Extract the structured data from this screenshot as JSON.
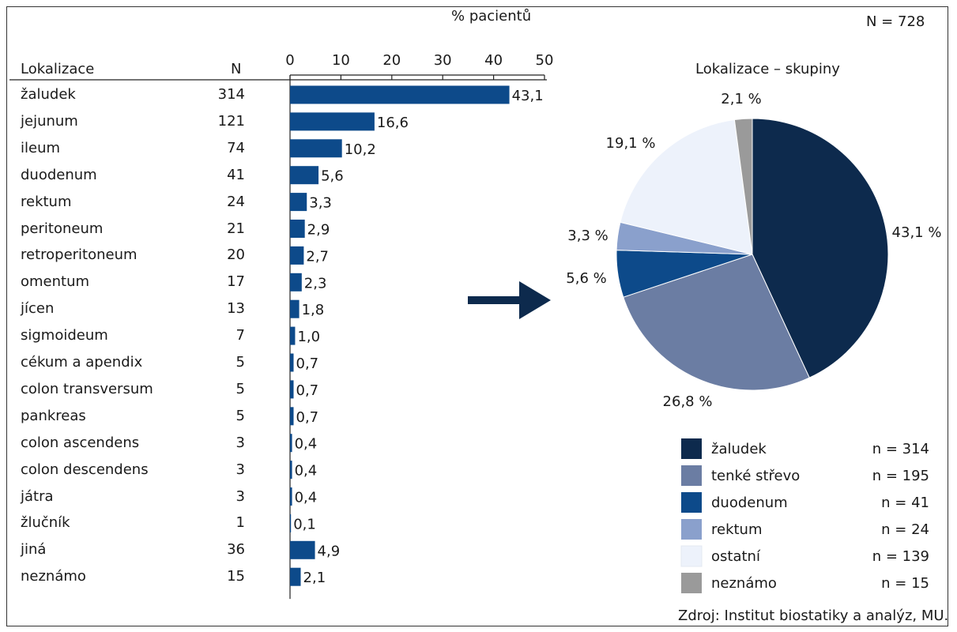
{
  "total_label": "N = 728",
  "source_note": "Zdroj: Institut biostatiky a analýz, MU.",
  "colors": {
    "bar": "#0d4a8a",
    "arrow": "#0d2a4d",
    "zaludek": "#0d2a4d",
    "tenke_strevo": "#6b7da3",
    "duodenum": "#0d4a8a",
    "rektum": "#8aa0cc",
    "ostatni": "#edf2fb",
    "neznamo": "#9a9a9a"
  },
  "chart_data": [
    {
      "type": "bar",
      "orientation": "horizontal",
      "title": "% pacientů",
      "row_header": "Lokalizace",
      "n_header": "N",
      "xlim": [
        0,
        50
      ],
      "xticks": [
        0,
        10,
        20,
        30,
        40,
        50
      ],
      "categories": [
        "žaludek",
        "jejunum",
        "ileum",
        "duodenum",
        "rektum",
        "peritoneum",
        "retroperitoneum",
        "omentum",
        "jícen",
        "sigmoideum",
        "cékum a apendix",
        "colon transversum",
        "pankreas",
        "colon ascendens",
        "colon descendens",
        "játra",
        "žlučník",
        "jiná",
        "neznámo"
      ],
      "n": [
        "314",
        "121",
        "74",
        "41",
        "24",
        "21",
        "20",
        "17",
        "13",
        "7",
        "5",
        "5",
        "5",
        "3",
        "3",
        "3",
        "1",
        "36",
        "15"
      ],
      "values": [
        43.1,
        16.6,
        10.2,
        5.6,
        3.3,
        2.9,
        2.7,
        2.3,
        1.8,
        1.0,
        0.7,
        0.7,
        0.7,
        0.4,
        0.4,
        0.4,
        0.1,
        4.9,
        2.1
      ],
      "value_labels": [
        "43,1",
        "16,6",
        "10,2",
        "5,6",
        "3,3",
        "2,9",
        "2,7",
        "2,3",
        "1,8",
        "1,0",
        "0,7",
        "0,7",
        "0,7",
        "0,4",
        "0,4",
        "0,4",
        "0,1",
        "4,9",
        "2,1"
      ]
    },
    {
      "type": "pie",
      "title": "Lokalizace – skupiny",
      "slices": [
        {
          "label": "žaludek",
          "value": 43.1,
          "value_label": "43,1 %",
          "count": "n = 314",
          "color_key": "zaludek"
        },
        {
          "label": "tenké střevo",
          "value": 26.8,
          "value_label": "26,8 %",
          "count": "n = 195",
          "color_key": "tenke_strevo"
        },
        {
          "label": "duodenum",
          "value": 5.6,
          "value_label": "5,6 %",
          "count": "n = 41",
          "color_key": "duodenum"
        },
        {
          "label": "rektum",
          "value": 3.3,
          "value_label": "3,3 %",
          "count": "n = 24",
          "color_key": "rektum"
        },
        {
          "label": "ostatní",
          "value": 19.1,
          "value_label": "19,1 %",
          "count": "n = 139",
          "color_key": "ostatni"
        },
        {
          "label": "neznámo",
          "value": 2.1,
          "value_label": "2,1 %",
          "count": "n = 15",
          "color_key": "neznamo"
        }
      ],
      "legend_position": "bottom-right"
    }
  ]
}
